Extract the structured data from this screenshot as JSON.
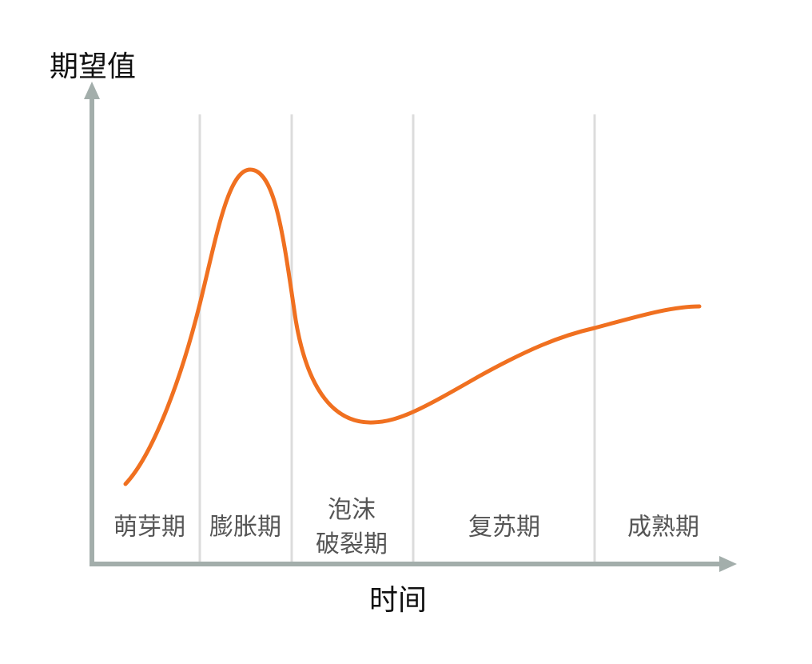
{
  "y_axis_label": "期望值",
  "x_axis_label": "时间",
  "phases": [
    {
      "lines": [
        "萌芽期"
      ]
    },
    {
      "lines": [
        "膨胀期"
      ]
    },
    {
      "lines": [
        "泡沫",
        "破裂期"
      ]
    },
    {
      "lines": [
        "复苏期"
      ]
    },
    {
      "lines": [
        "成熟期"
      ]
    }
  ]
}
